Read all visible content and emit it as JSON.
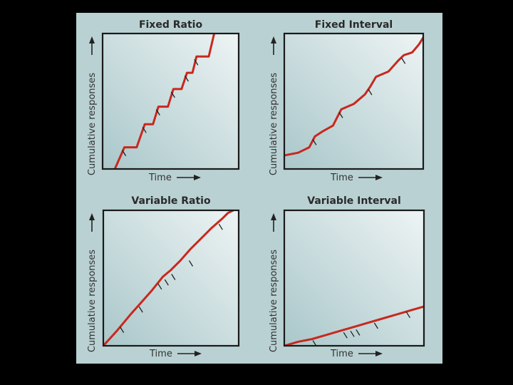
{
  "colors": {
    "page_background": "#000000",
    "figure_background": "#b9d1d3",
    "plot_gradient_start": "#a9c7ca",
    "plot_gradient_end": "#eef4f4",
    "frame": "#1a1a1a",
    "curve": "#c8281e",
    "tick_mark": "#222222"
  },
  "chart_data": [
    {
      "type": "line",
      "title": "Fixed Ratio",
      "xlabel": "Time",
      "ylabel": "Cumulative responses",
      "xlim": [
        0,
        100
      ],
      "ylim": [
        0,
        100
      ],
      "grid": false,
      "series": [
        {
          "points": [
            [
              9,
              0
            ],
            [
              16,
              16
            ],
            [
              25,
              16
            ],
            [
              31,
              33
            ],
            [
              37,
              33
            ],
            [
              41,
              46
            ],
            [
              48,
              46
            ],
            [
              52,
              59
            ],
            [
              58,
              59
            ],
            [
              62,
              71
            ],
            [
              66,
              71
            ],
            [
              69,
              83
            ],
            [
              78,
              83
            ],
            [
              82,
              100
            ]
          ]
        }
      ],
      "reinforcement_marks": [
        [
          16,
          16
        ],
        [
          31,
          33
        ],
        [
          41,
          46
        ],
        [
          52,
          59
        ],
        [
          62,
          71
        ],
        [
          69,
          83
        ]
      ]
    },
    {
      "type": "line",
      "title": "Fixed Interval",
      "xlabel": "Time",
      "ylabel": "Cumulative responses",
      "xlim": [
        0,
        100
      ],
      "ylim": [
        0,
        100
      ],
      "grid": false,
      "series": [
        {
          "points": [
            [
              0,
              10
            ],
            [
              10,
              12
            ],
            [
              18,
              16
            ],
            [
              22,
              24
            ],
            [
              28,
              28
            ],
            [
              35,
              32
            ],
            [
              41,
              44
            ],
            [
              50,
              48
            ],
            [
              58,
              55
            ],
            [
              62,
              61
            ],
            [
              66,
              68
            ],
            [
              75,
              72
            ],
            [
              82,
              80
            ],
            [
              86,
              84
            ],
            [
              92,
              86
            ],
            [
              97,
              92
            ],
            [
              100,
              97
            ]
          ]
        }
      ],
      "reinforcement_marks": [
        [
          22,
          24
        ],
        [
          41,
          44
        ],
        [
          62,
          61
        ],
        [
          86,
          84
        ]
      ]
    },
    {
      "type": "line",
      "title": "Variable Ratio",
      "xlabel": "Time",
      "ylabel": "Cumulative responses",
      "xlim": [
        0,
        100
      ],
      "ylim": [
        0,
        100
      ],
      "grid": false,
      "series": [
        {
          "points": [
            [
              0,
              0
            ],
            [
              10,
              11
            ],
            [
              20,
              23
            ],
            [
              28,
              32
            ],
            [
              36,
              41
            ],
            [
              44,
              51
            ],
            [
              50,
              56
            ],
            [
              57,
              63
            ],
            [
              64,
              71
            ],
            [
              72,
              79
            ],
            [
              80,
              87
            ],
            [
              88,
              94
            ],
            [
              92,
              98
            ],
            [
              96,
              100
            ]
          ]
        }
      ],
      "reinforcement_marks": [
        [
          14,
          16
        ],
        [
          28,
          31
        ],
        [
          42,
          48
        ],
        [
          47,
          51
        ],
        [
          52,
          55
        ],
        [
          65,
          65
        ],
        [
          87,
          92
        ]
      ]
    },
    {
      "type": "line",
      "title": "Variable Interval",
      "xlabel": "Time",
      "ylabel": "Cumulative responses",
      "xlim": [
        0,
        100
      ],
      "ylim": [
        0,
        100
      ],
      "grid": false,
      "series": [
        {
          "points": [
            [
              0,
              0
            ],
            [
              10,
              3
            ],
            [
              20,
              5
            ],
            [
              30,
              8
            ],
            [
              40,
              11
            ],
            [
              50,
              14
            ],
            [
              60,
              17
            ],
            [
              70,
              20
            ],
            [
              80,
              23
            ],
            [
              90,
              26
            ],
            [
              100,
              29
            ]
          ]
        }
      ],
      "reinforcement_marks": [
        [
          22,
          6
        ],
        [
          44,
          12
        ],
        [
          49,
          13
        ],
        [
          53,
          14
        ],
        [
          66,
          19
        ],
        [
          89,
          27
        ]
      ]
    }
  ]
}
